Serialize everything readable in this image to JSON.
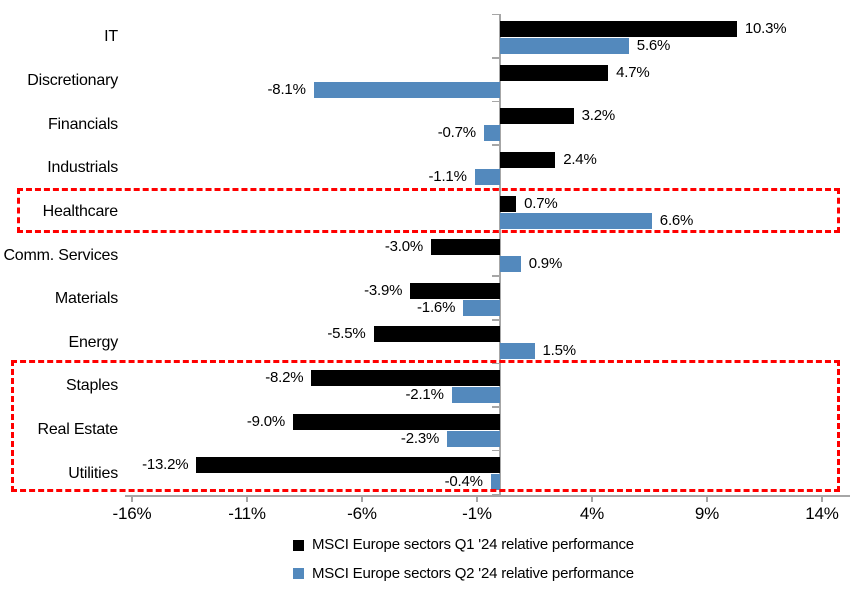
{
  "chart_data": {
    "type": "bar",
    "orientation": "horizontal",
    "title": "",
    "xlabel": "",
    "ylabel": "",
    "grid": false,
    "legend_position": "bottom-center",
    "categories": [
      "IT",
      "Discretionary",
      "Financials",
      "Industrials",
      "Healthcare",
      "Comm. Services",
      "Materials",
      "Energy",
      "Staples",
      "Real Estate",
      "Utilities"
    ],
    "series": [
      {
        "name": "MSCI Europe sectors Q1 '24 relative performance",
        "color": "#000000",
        "values": [
          10.3,
          4.7,
          3.2,
          2.4,
          0.7,
          -3.0,
          -3.9,
          -5.5,
          -8.2,
          -9.0,
          -13.2
        ],
        "labels": [
          "10.3%",
          "4.7%",
          "3.2%",
          "2.4%",
          "0.7%",
          "-3.0%",
          "-3.9%",
          "-5.5%",
          "-8.2%",
          "-9.0%",
          "-13.2%"
        ]
      },
      {
        "name": "MSCI Europe sectors Q2 '24 relative performance",
        "color": "#5389BD",
        "values": [
          5.6,
          -8.1,
          -0.7,
          -1.1,
          6.6,
          0.9,
          -1.6,
          1.5,
          -2.1,
          -2.3,
          -0.4
        ],
        "labels": [
          "5.6%",
          "-8.1%",
          "-0.7%",
          "-1.1%",
          "6.6%",
          "0.9%",
          "-1.6%",
          "1.5%",
          "-2.1%",
          "-2.3%",
          "-0.4%"
        ]
      }
    ],
    "x_ticks": [
      {
        "label": "-16%",
        "value": -16
      },
      {
        "label": "-11%",
        "value": -11
      },
      {
        "label": "-6%",
        "value": -6
      },
      {
        "label": "-1%",
        "value": -1
      },
      {
        "label": "4%",
        "value": 4
      },
      {
        "label": "9%",
        "value": 9
      },
      {
        "label": "14%",
        "value": 14
      }
    ],
    "xlim": [
      -16.3,
      15.2
    ],
    "axis_color": "#A6A6A6",
    "highlight_color": "#FF0000",
    "highlight_boxes": [
      {
        "categories": [
          "Healthcare"
        ]
      },
      {
        "categories": [
          "Staples",
          "Real Estate",
          "Utilities"
        ]
      }
    ]
  }
}
